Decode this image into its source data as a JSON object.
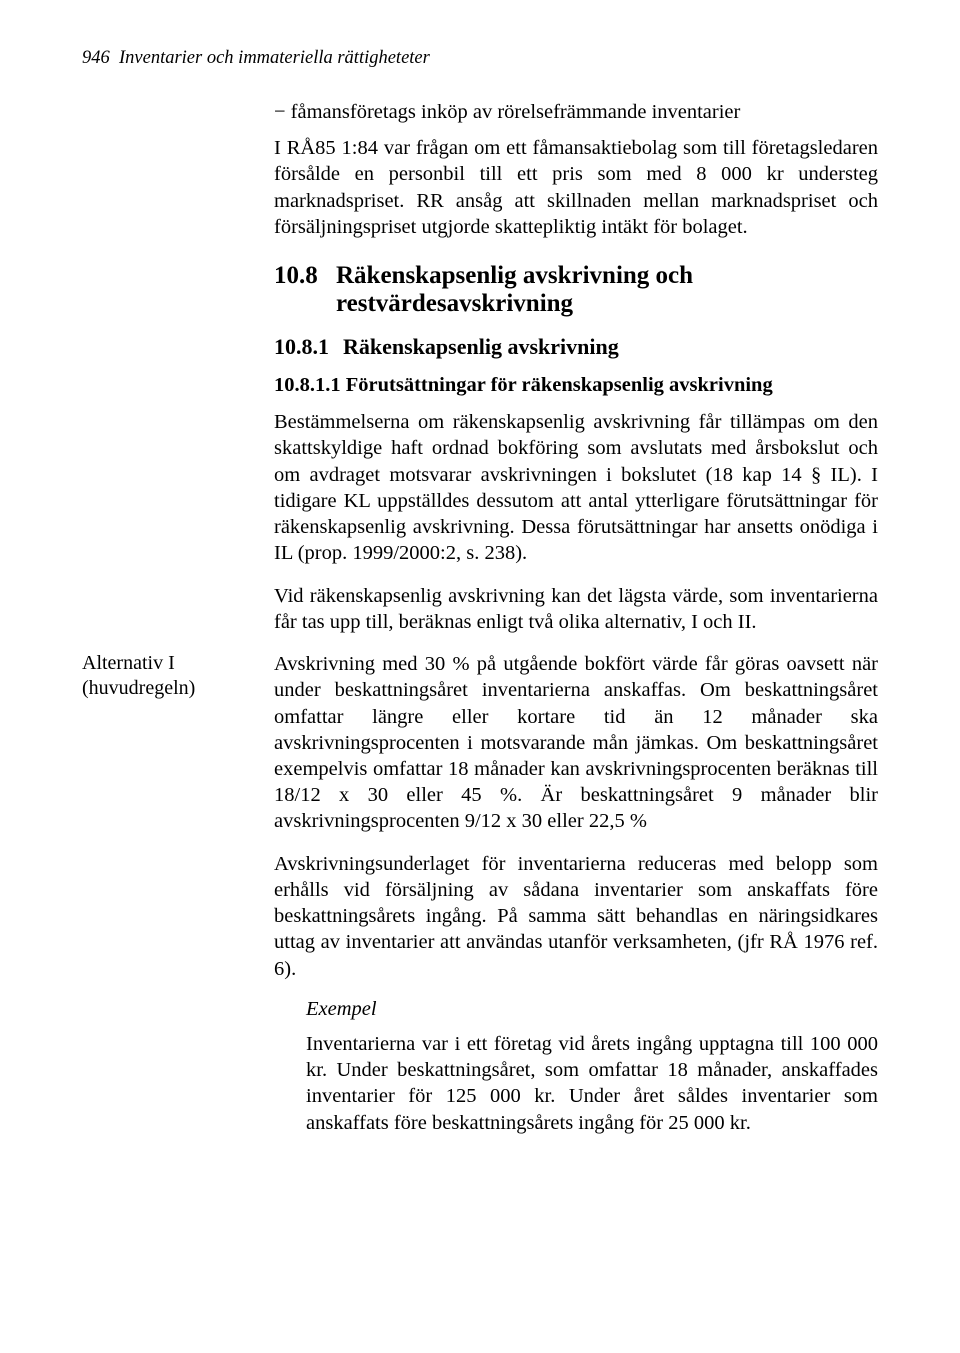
{
  "header": {
    "page_number": "946",
    "title": "Inventarier och immateriella rättigheteter"
  },
  "dash_line": "−  fåmansföretags inköp av rörelsefrämmande inventarier",
  "intro_para": "I RÅ85 1:84 var frågan om ett fåmansaktiebolag som till företagsledaren försålde en personbil till ett pris som med 8 000 kr understeg marknadspriset. RR ansåg att skillnaden mellan marknadspriset och försäljningspriset utgjorde skattepliktig intäkt för bolaget.",
  "sec_10_8": {
    "num": "10.8",
    "title": "Räkenskapsenlig avskrivning och restvärdesavskrivning"
  },
  "sec_10_8_1": {
    "num": "10.8.1",
    "title": "Räkenskapsenlig avskrivning"
  },
  "sec_10_8_1_1": {
    "title": "10.8.1.1 Förutsättningar för räkenskapsenlig avskrivning"
  },
  "para_bestammelserna": "Bestämmelserna om räkenskapsenlig avskrivning får tillämpas om den skattskyldige haft ordnad bokföring som avslutats med årsbokslut och om avdraget motsvarar avskrivningen i bokslutet (18 kap 14 § IL). I tidigare KL uppställdes dessutom att antal ytterligare förutsättningar för räkenskapsenlig avskrivning. Dessa förutsättningar har ansetts onödiga i IL (prop. 1999/2000:2, s. 238).",
  "para_vid": "Vid räkenskapsenlig avskrivning kan det lägsta värde, som inventarierna får tas upp till, beräknas enligt två olika alternativ, I och II.",
  "margin_note": "Alternativ I (huvudregeln)",
  "para_avskrivning30": "Avskrivning med 30 % på utgående bokfört värde får göras oavsett när under beskattningsåret inventarierna anskaffas. Om beskattningsåret omfattar längre eller kortare tid än 12 månader ska avskrivningsprocenten i motsvarande mån jämkas. Om beskattningsåret exempelvis omfattar 18 månader kan avskrivningsprocenten beräknas till 18/12 x 30 eller 45 %. Är beskattningsåret 9 månader blir avskrivningsprocenten 9/12 x 30 eller 22,5 %",
  "para_underlag": "Avskrivningsunderlaget för inventarierna reduceras med belopp som erhålls vid försäljning av sådana inventarier som anskaffats före beskattningsårets ingång. På samma sätt behandlas en näringsidkares uttag av inventarier att användas utanför verksamheten, (jfr RÅ 1976 ref. 6).",
  "example_label": "Exempel",
  "example_body": "Inventarierna var i ett företag vid årets ingång upptagna till 100 000 kr. Under beskattningsåret, som omfattar 18 månader, anskaffades inventarier för 125 000 kr. Under året såldes inventarier som anskaffats före beskattningsårets ingång för 25 000 kr."
}
